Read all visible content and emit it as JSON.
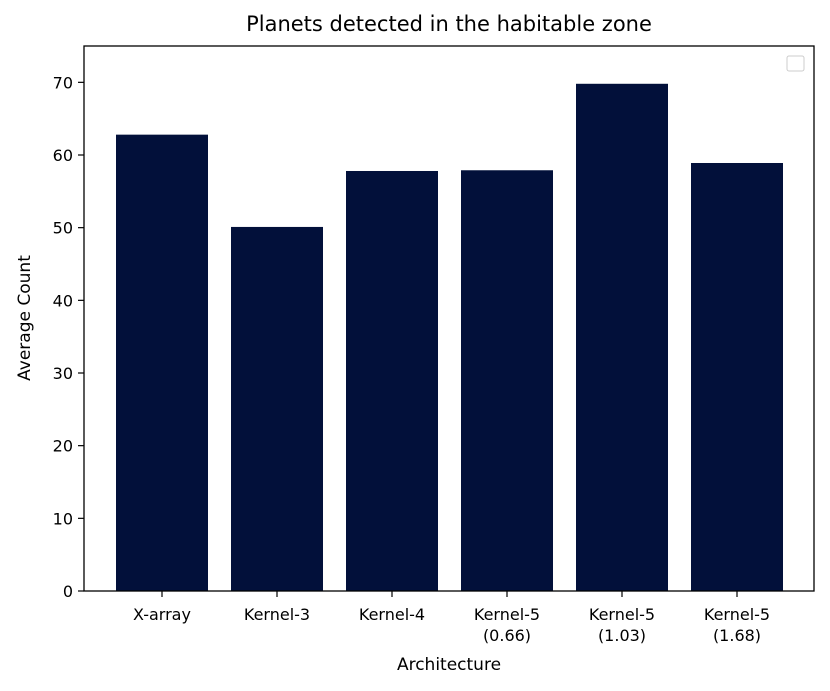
{
  "chart_data": {
    "type": "bar",
    "title": "Planets detected in the habitable zone",
    "xlabel": "Architecture",
    "ylabel": "Average Count",
    "categories": [
      [
        "X-array"
      ],
      [
        "Kernel-3"
      ],
      [
        "Kernel-4"
      ],
      [
        "Kernel-5",
        "(0.66)"
      ],
      [
        "Kernel-5",
        "(1.03)"
      ],
      [
        "Kernel-5",
        "(1.68)"
      ]
    ],
    "values": [
      62.8,
      50.1,
      57.8,
      57.9,
      69.8,
      58.9
    ],
    "ylim": [
      0,
      75
    ],
    "yticks": [
      "0",
      "10",
      "20",
      "30",
      "40",
      "50",
      "60",
      "70"
    ],
    "grid": false,
    "legend": "top-right (empty)",
    "bar_color": "#02103a"
  }
}
